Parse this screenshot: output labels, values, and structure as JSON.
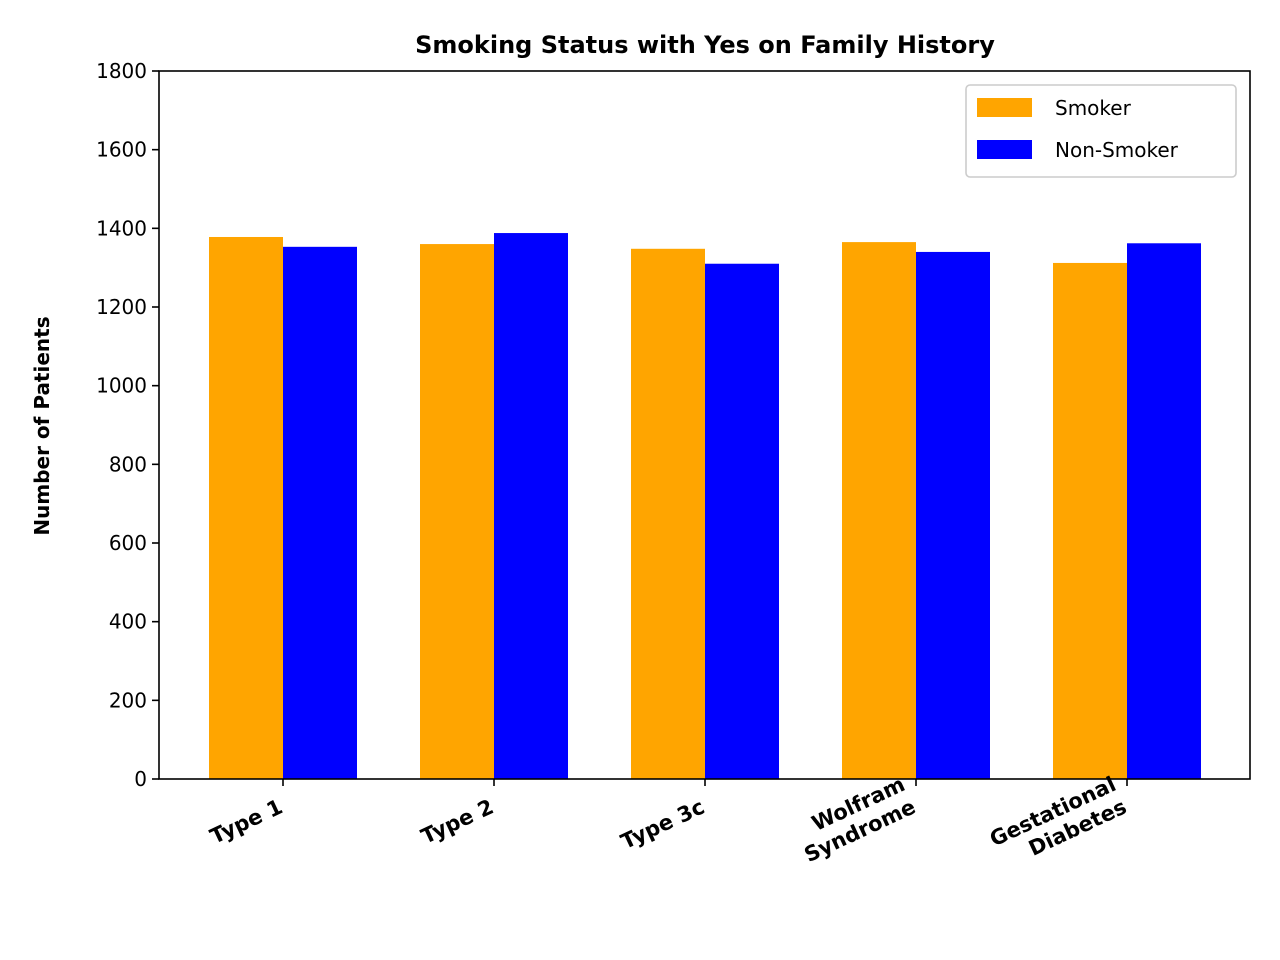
{
  "chart_data": {
    "type": "bar",
    "title": "Smoking Status with Yes on Family History",
    "xlabel": "",
    "ylabel": "Number of Patients",
    "categories": [
      [
        "Type 1"
      ],
      [
        "Type 2"
      ],
      [
        "Type 3c"
      ],
      [
        "Wolfram",
        "Syndrome"
      ],
      [
        "Gestational",
        "Diabetes"
      ]
    ],
    "series": [
      {
        "name": "Smoker",
        "color": "#FFA500",
        "values": [
          1378,
          1360,
          1348,
          1365,
          1312
        ]
      },
      {
        "name": "Non-Smoker",
        "color": "#0000FF",
        "values": [
          1353,
          1388,
          1310,
          1340,
          1362
        ]
      }
    ],
    "ylim": [
      0,
      1800
    ],
    "yticks": [
      0,
      200,
      400,
      600,
      800,
      1000,
      1200,
      1400,
      1600,
      1800
    ],
    "grid": false,
    "legend": "upper right"
  }
}
